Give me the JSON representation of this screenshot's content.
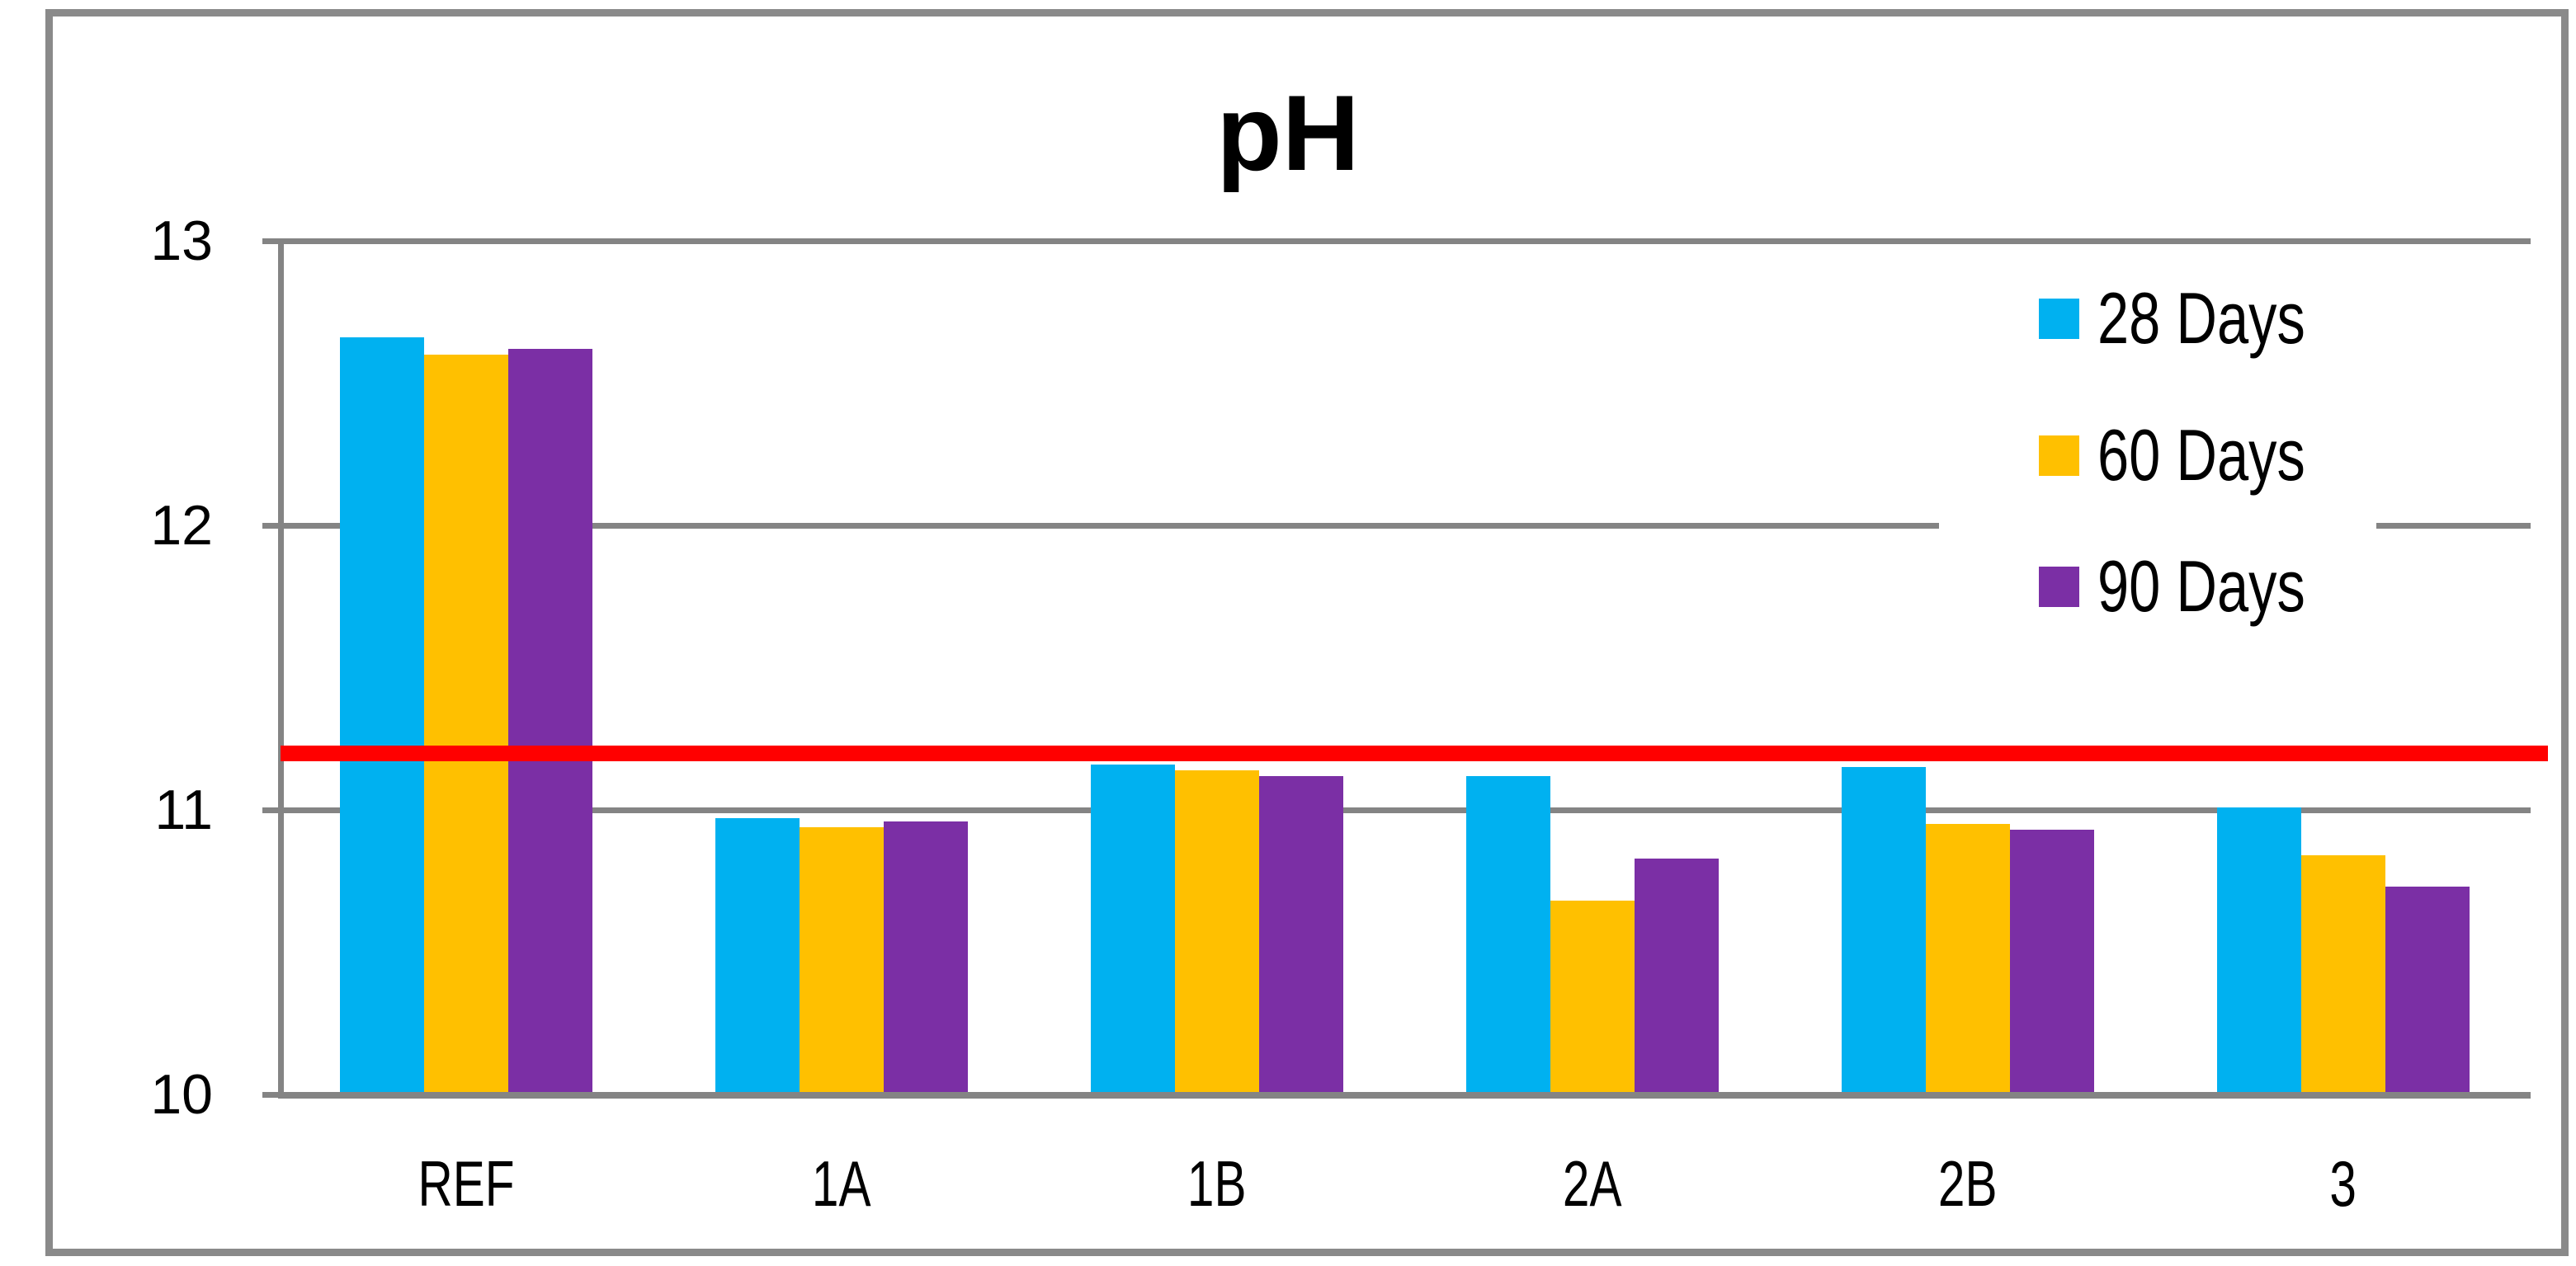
{
  "title": "pH",
  "colors": {
    "series_colors": [
      "#00B1F0",
      "#FFC000",
      "#7B2FA5"
    ],
    "reference_line": "#FF0000",
    "gridline": "#848484",
    "frame": "#8A8A8A",
    "text": "#000000",
    "background": "#FFFFFF"
  },
  "chart_data": {
    "type": "bar",
    "title": "pH",
    "categories": [
      "REF",
      "1A",
      "1B",
      "2A",
      "2B",
      "3"
    ],
    "series": [
      {
        "name": "28 Days",
        "values": [
          12.66,
          10.97,
          11.16,
          11.12,
          11.15,
          11.01
        ]
      },
      {
        "name": "60 Days",
        "values": [
          12.6,
          10.94,
          11.14,
          10.68,
          10.95,
          10.84
        ]
      },
      {
        "name": "90 Days",
        "values": [
          12.62,
          10.96,
          11.12,
          10.83,
          10.93,
          10.73
        ]
      }
    ],
    "ylim": [
      10,
      13
    ],
    "y_ticks": [
      13,
      12,
      11,
      10
    ],
    "xlabel": "",
    "ylabel": "",
    "grid": true,
    "legend": [
      "28 Days",
      "60 Days",
      "90 Days"
    ],
    "legend_position": "inside-top-right",
    "reference_line": {
      "value": 11.2
    }
  }
}
